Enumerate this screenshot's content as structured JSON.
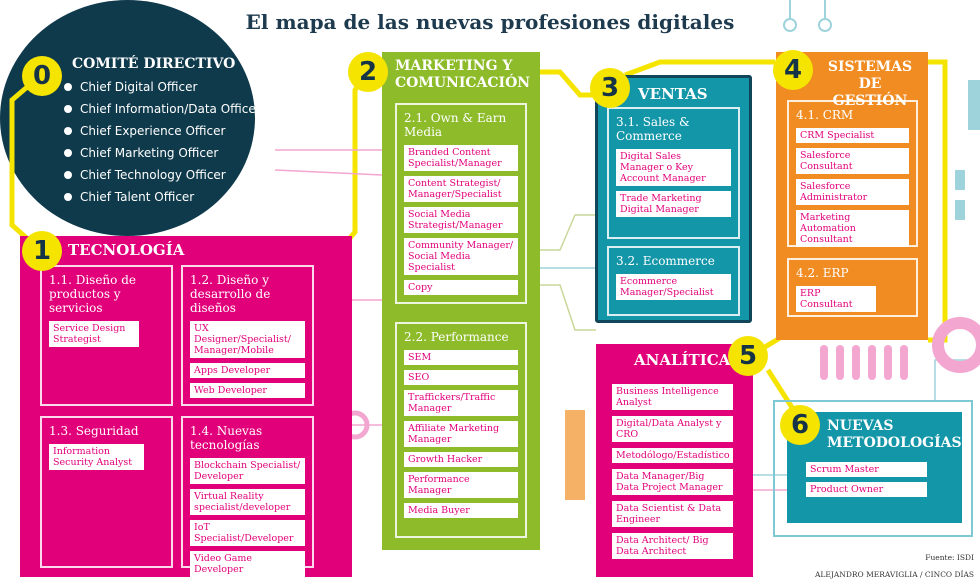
{
  "title": "El mapa de las nuevas profesiones digitales",
  "colors": {
    "magenta": "#e2007a",
    "green": "#8dbb2a",
    "teal": "#1396a8",
    "orange": "#f08c22",
    "navy": "#0f3a4c",
    "yellow": "#f5e400"
  },
  "comite": {
    "number": "0",
    "title": "COMITÉ DIRECTIVO",
    "items": [
      "Chief Digital Officer",
      "Chief Information/Data Officer",
      "Chief Experience Officer",
      "Chief Marketing Officer",
      "Chief Technology Officer",
      "Chief Talent Officer"
    ]
  },
  "tecnologia": {
    "number": "1",
    "title": "TECNOLOGÍA",
    "sections": [
      {
        "title": "1.1. Diseño de productos y servicios",
        "items": [
          "Service Design Strategist"
        ]
      },
      {
        "title": "1.2. Diseño y desarrollo de diseños",
        "items": [
          "UX Designer/Specialist/ Manager/Mobile",
          "Apps Developer",
          "Web Developer"
        ]
      },
      {
        "title": "1.3. Seguridad",
        "items": [
          "Information Security Analyst"
        ]
      },
      {
        "title": "1.4. Nuevas tecnologías",
        "items": [
          "Blockchain Specialist/ Developer",
          "Virtual Reality specialist/developer",
          "IoT Specialist/Developer",
          "Video Game Developer"
        ]
      }
    ]
  },
  "marketing": {
    "number": "2",
    "title": "MARKETING Y COMUNICACIÓN",
    "sections": [
      {
        "title": "2.1. Own & Earn Media",
        "items": [
          "Branded Content Specialist/Manager",
          "Content Strategist/ Manager/Specialist",
          "Social Media Strategist/Manager",
          "Community Manager/ Social Media Specialist",
          "Copy"
        ]
      },
      {
        "title": "2.2. Performance",
        "items": [
          "SEM",
          "SEO",
          "Traffickers/Traffic Manager",
          "Affiliate Marketing Manager",
          "Growth Hacker",
          "Performance Manager",
          "Media Buyer"
        ]
      }
    ]
  },
  "ventas": {
    "number": "3",
    "title": "VENTAS",
    "sections": [
      {
        "title": "3.1. Sales & Commerce",
        "items": [
          "Digital Sales Manager o Key Account Manager",
          "Trade Marketing Digital Manager"
        ]
      },
      {
        "title": "3.2. Ecommerce",
        "items": [
          "Ecommerce Manager/Specialist"
        ]
      }
    ]
  },
  "sistemas": {
    "number": "4",
    "title": "SISTEMAS DE GESTIÓN",
    "sections": [
      {
        "title": "4.1. CRM",
        "items": [
          "CRM Specialist",
          "Salesforce Consultant",
          "Salesforce Administrator",
          "Marketing Automation Consultant"
        ]
      },
      {
        "title": "4.2. ERP",
        "items": [
          "ERP Consultant"
        ]
      }
    ]
  },
  "analitica": {
    "number": "5",
    "title": "ANALÍTICA",
    "items": [
      "Business Intelligence Analyst",
      "Digital/Data Analyst y CRO",
      "Metodólogo/Estadístico",
      "Data Manager/Big Data Project Manager",
      "Data Scientist & Data Engineer",
      "Data Architect/ Big Data Architect"
    ]
  },
  "metodologias": {
    "number": "6",
    "title": "NUEVAS METODOLOGÍAS",
    "items": [
      "Scrum Master",
      "Product Owner"
    ]
  },
  "footer": {
    "source": "Fuente: ISDI",
    "credit": "ALEJANDRO MERAVIGLIA / CINCO DÍAS"
  }
}
